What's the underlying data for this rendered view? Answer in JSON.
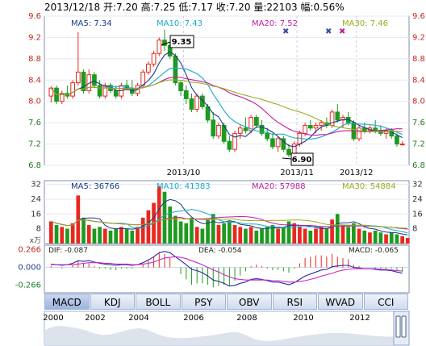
{
  "header": {
    "date": "2013/12/18",
    "open_label": "开:",
    "open": "7.20",
    "high_label": "高:",
    "high": "7.25",
    "low_label": "低:",
    "low": "7.17",
    "close_label": "收:",
    "close": "7.20",
    "volume_label": "量:",
    "volume": "22103",
    "change_label": "幅:",
    "change": "0.56%"
  },
  "colors": {
    "up": "#e8281e",
    "down": "#1e9a1e",
    "ma5": "#1a3a8c",
    "ma10": "#19a7c9",
    "ma20": "#c21d9d",
    "ma30": "#9aab1d",
    "dif": "#2a2aa8",
    "dea": "#c72ac7"
  },
  "price_panel": {
    "ma_labels": [
      {
        "label": "MA5: 7.34"
      },
      {
        "label": "MA10: 7.43"
      },
      {
        "label": "MA20: 7.52"
      },
      {
        "label": "MA30: 7.46"
      }
    ],
    "y_ticks": [
      "9.6",
      "9.2",
      "8.8",
      "8.4",
      "8.0",
      "7.6",
      "7.2",
      "6.8"
    ],
    "x_ticks": [
      "2013/10",
      "2013/11",
      "2013/12"
    ],
    "high_annotation": "9.35",
    "low_annotation": "6.90"
  },
  "volume_panel": {
    "ma_labels": [
      {
        "label": "MA5: 36766"
      },
      {
        "label": "MA10: 41383"
      },
      {
        "label": "MA20: 57988"
      },
      {
        "label": "MA30: 54884"
      }
    ],
    "y_ticks": [
      "32",
      "24",
      "16",
      "8"
    ],
    "unit": "x万"
  },
  "macd_panel": {
    "dif_label": "DIF: -0.087",
    "dea_label": "DEA: -0.054",
    "macd_label": "MACD: -0.065",
    "y_ticks": [
      "0.266",
      "0.000",
      "-0.266"
    ]
  },
  "tabs": [
    "MACD",
    "KDJ",
    "BOLL",
    "PSY",
    "OBV",
    "RSI",
    "WVAD",
    "CCI"
  ],
  "active_tab": "MACD",
  "overview": {
    "years": [
      "2000",
      "2002",
      "2004",
      "2006",
      "2008",
      "2010",
      "2012"
    ]
  },
  "chart_data": {
    "type": "candlestick",
    "title": "",
    "ylim": [
      6.8,
      9.6
    ],
    "x_range": [
      "2013/09",
      "2013/12/18"
    ],
    "candles": [
      {
        "o": 8.1,
        "h": 8.28,
        "l": 7.98,
        "c": 8.25
      },
      {
        "o": 8.25,
        "h": 8.3,
        "l": 7.95,
        "c": 8.0
      },
      {
        "o": 8.0,
        "h": 8.2,
        "l": 7.95,
        "c": 8.15
      },
      {
        "o": 8.15,
        "h": 8.3,
        "l": 8.05,
        "c": 8.1
      },
      {
        "o": 8.1,
        "h": 8.4,
        "l": 8.05,
        "c": 8.35
      },
      {
        "o": 8.35,
        "h": 9.3,
        "l": 8.3,
        "c": 8.55
      },
      {
        "o": 8.55,
        "h": 8.6,
        "l": 8.15,
        "c": 8.2
      },
      {
        "o": 8.2,
        "h": 8.6,
        "l": 8.15,
        "c": 8.5
      },
      {
        "o": 8.5,
        "h": 8.55,
        "l": 8.25,
        "c": 8.3
      },
      {
        "o": 8.3,
        "h": 8.4,
        "l": 8.05,
        "c": 8.1
      },
      {
        "o": 8.1,
        "h": 8.35,
        "l": 8.05,
        "c": 8.3
      },
      {
        "o": 8.3,
        "h": 8.35,
        "l": 8.15,
        "c": 8.2
      },
      {
        "o": 8.2,
        "h": 8.3,
        "l": 8.05,
        "c": 8.1
      },
      {
        "o": 8.1,
        "h": 8.35,
        "l": 8.05,
        "c": 8.3
      },
      {
        "o": 8.3,
        "h": 8.4,
        "l": 8.2,
        "c": 8.25
      },
      {
        "o": 8.25,
        "h": 8.4,
        "l": 8.1,
        "c": 8.15
      },
      {
        "o": 8.15,
        "h": 8.35,
        "l": 8.1,
        "c": 8.3
      },
      {
        "o": 8.3,
        "h": 8.6,
        "l": 8.25,
        "c": 8.55
      },
      {
        "o": 8.55,
        "h": 8.75,
        "l": 8.5,
        "c": 8.7
      },
      {
        "o": 8.7,
        "h": 8.95,
        "l": 8.65,
        "c": 8.9
      },
      {
        "o": 8.9,
        "h": 9.2,
        "l": 8.85,
        "c": 9.15
      },
      {
        "o": 9.15,
        "h": 9.35,
        "l": 8.95,
        "c": 9.05
      },
      {
        "o": 9.05,
        "h": 9.1,
        "l": 8.8,
        "c": 8.85
      },
      {
        "o": 8.85,
        "h": 8.9,
        "l": 8.3,
        "c": 8.35
      },
      {
        "o": 8.35,
        "h": 8.4,
        "l": 8.1,
        "c": 8.2
      },
      {
        "o": 8.2,
        "h": 8.3,
        "l": 7.95,
        "c": 8.05
      },
      {
        "o": 8.05,
        "h": 8.15,
        "l": 7.8,
        "c": 7.85
      },
      {
        "o": 7.85,
        "h": 8.15,
        "l": 7.8,
        "c": 8.1
      },
      {
        "o": 8.1,
        "h": 8.15,
        "l": 7.85,
        "c": 7.9
      },
      {
        "o": 7.9,
        "h": 7.95,
        "l": 7.6,
        "c": 7.65
      },
      {
        "o": 7.65,
        "h": 7.8,
        "l": 7.3,
        "c": 7.35
      },
      {
        "o": 7.35,
        "h": 7.6,
        "l": 7.3,
        "c": 7.55
      },
      {
        "o": 7.55,
        "h": 7.6,
        "l": 7.2,
        "c": 7.25
      },
      {
        "o": 7.25,
        "h": 7.35,
        "l": 7.05,
        "c": 7.1
      },
      {
        "o": 7.1,
        "h": 7.45,
        "l": 7.05,
        "c": 7.4
      },
      {
        "o": 7.4,
        "h": 7.55,
        "l": 7.3,
        "c": 7.5
      },
      {
        "o": 7.5,
        "h": 7.7,
        "l": 7.4,
        "c": 7.45
      },
      {
        "o": 7.45,
        "h": 7.75,
        "l": 7.4,
        "c": 7.7
      },
      {
        "o": 7.7,
        "h": 7.75,
        "l": 7.5,
        "c": 7.55
      },
      {
        "o": 7.55,
        "h": 7.65,
        "l": 7.35,
        "c": 7.4
      },
      {
        "o": 7.4,
        "h": 7.5,
        "l": 7.25,
        "c": 7.3
      },
      {
        "o": 7.3,
        "h": 7.4,
        "l": 7.1,
        "c": 7.15
      },
      {
        "o": 7.15,
        "h": 7.35,
        "l": 7.05,
        "c": 7.3
      },
      {
        "o": 7.3,
        "h": 7.35,
        "l": 7.05,
        "c": 7.1
      },
      {
        "o": 7.1,
        "h": 7.2,
        "l": 6.95,
        "c": 7.0
      },
      {
        "o": 7.0,
        "h": 7.25,
        "l": 6.9,
        "c": 7.2
      },
      {
        "o": 7.2,
        "h": 7.45,
        "l": 7.15,
        "c": 7.4
      },
      {
        "o": 7.4,
        "h": 7.6,
        "l": 7.35,
        "c": 7.55
      },
      {
        "o": 7.55,
        "h": 7.65,
        "l": 7.45,
        "c": 7.5
      },
      {
        "o": 7.5,
        "h": 7.6,
        "l": 7.4,
        "c": 7.55
      },
      {
        "o": 7.55,
        "h": 7.65,
        "l": 7.45,
        "c": 7.6
      },
      {
        "o": 7.6,
        "h": 7.7,
        "l": 7.5,
        "c": 7.55
      },
      {
        "o": 7.55,
        "h": 7.85,
        "l": 7.5,
        "c": 7.8
      },
      {
        "o": 7.8,
        "h": 7.95,
        "l": 7.6,
        "c": 7.65
      },
      {
        "o": 7.65,
        "h": 7.75,
        "l": 7.5,
        "c": 7.7
      },
      {
        "o": 7.7,
        "h": 7.8,
        "l": 7.55,
        "c": 7.6
      },
      {
        "o": 7.6,
        "h": 7.65,
        "l": 7.25,
        "c": 7.3
      },
      {
        "o": 7.3,
        "h": 7.55,
        "l": 7.25,
        "c": 7.5
      },
      {
        "o": 7.5,
        "h": 7.6,
        "l": 7.4,
        "c": 7.45
      },
      {
        "o": 7.45,
        "h": 7.55,
        "l": 7.4,
        "c": 7.5
      },
      {
        "o": 7.5,
        "h": 7.65,
        "l": 7.4,
        "c": 7.45
      },
      {
        "o": 7.45,
        "h": 7.55,
        "l": 7.35,
        "c": 7.4
      },
      {
        "o": 7.4,
        "h": 7.5,
        "l": 7.3,
        "c": 7.45
      },
      {
        "o": 7.45,
        "h": 7.5,
        "l": 7.3,
        "c": 7.35
      },
      {
        "o": 7.35,
        "h": 7.4,
        "l": 7.15,
        "c": 7.2
      },
      {
        "o": 7.2,
        "h": 7.25,
        "l": 7.17,
        "c": 7.2
      }
    ],
    "volume": [
      12,
      10,
      9,
      8,
      11,
      26,
      14,
      10,
      8,
      9,
      8,
      7,
      8,
      9,
      8,
      7,
      9,
      14,
      18,
      22,
      31,
      28,
      20,
      15,
      12,
      11,
      14,
      9,
      8,
      13,
      16,
      10,
      11,
      12,
      10,
      9,
      8,
      9,
      7,
      8,
      9,
      10,
      8,
      9,
      12,
      11,
      9,
      8,
      7,
      8,
      9,
      8,
      13,
      16,
      10,
      9,
      11,
      8,
      7,
      6,
      7,
      6,
      5,
      6,
      5,
      4,
      3
    ],
    "macd": {
      "dif": [
        0.05,
        0.04,
        0.03,
        0.04,
        0.06,
        0.1,
        0.09,
        0.1,
        0.08,
        0.06,
        0.05,
        0.04,
        0.03,
        0.04,
        0.04,
        0.03,
        0.04,
        0.07,
        0.11,
        0.16,
        0.22,
        0.24,
        0.22,
        0.16,
        0.1,
        0.04,
        -0.03,
        -0.05,
        -0.08,
        -0.13,
        -0.19,
        -0.21,
        -0.24,
        -0.28,
        -0.27,
        -0.24,
        -0.22,
        -0.18,
        -0.17,
        -0.18,
        -0.2,
        -0.22,
        -0.22,
        -0.24,
        -0.26,
        -0.23,
        -0.18,
        -0.13,
        -0.1,
        -0.07,
        -0.04,
        -0.03,
        0.01,
        0.02,
        0.03,
        0.03,
        0.0,
        -0.01,
        -0.02,
        -0.02,
        -0.03,
        -0.04,
        -0.04,
        -0.05,
        -0.07,
        -0.087
      ],
      "dea": [
        0.04,
        0.04,
        0.04,
        0.04,
        0.04,
        0.05,
        0.06,
        0.07,
        0.07,
        0.07,
        0.06,
        0.06,
        0.05,
        0.05,
        0.05,
        0.04,
        0.04,
        0.05,
        0.06,
        0.08,
        0.11,
        0.14,
        0.15,
        0.16,
        0.15,
        0.13,
        0.1,
        0.07,
        0.04,
        0.0,
        -0.04,
        -0.07,
        -0.11,
        -0.14,
        -0.17,
        -0.18,
        -0.19,
        -0.19,
        -0.19,
        -0.19,
        -0.19,
        -0.2,
        -0.2,
        -0.21,
        -0.22,
        -0.22,
        -0.21,
        -0.2,
        -0.18,
        -0.16,
        -0.13,
        -0.11,
        -0.09,
        -0.06,
        -0.04,
        -0.03,
        -0.02,
        -0.02,
        -0.02,
        -0.02,
        -0.02,
        -0.03,
        -0.03,
        -0.04,
        -0.05,
        -0.054
      ]
    }
  }
}
